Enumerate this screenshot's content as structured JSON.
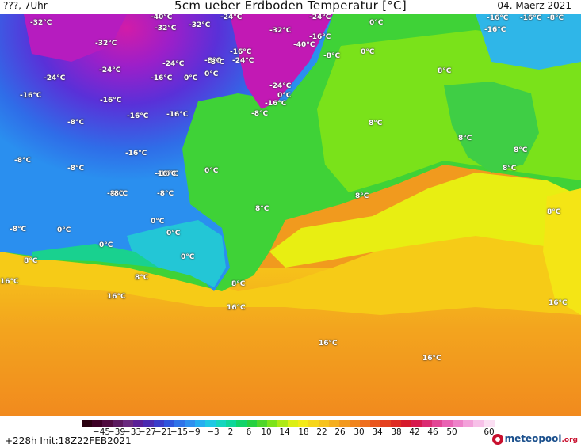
{
  "header": {
    "left": "???, 7Uhr",
    "title": "5cm ueber Erdboden Temperatur [°C]",
    "date": "04. Maerz 2021"
  },
  "map_labels": [
    {
      "text": "-32°C"
    },
    {
      "text": "-40°C"
    },
    {
      "text": "-24°C"
    },
    {
      "text": "-32°C"
    },
    {
      "text": "-32°C"
    },
    {
      "text": "-24°C"
    },
    {
      "text": "-32°C"
    },
    {
      "text": "-24°C"
    },
    {
      "text": "-16°C"
    },
    {
      "text": "0°C"
    },
    {
      "text": "-16°C"
    },
    {
      "text": "-8°C"
    },
    {
      "text": "-32°C"
    },
    {
      "text": "-16°C"
    },
    {
      "text": "-40°C"
    },
    {
      "text": "-8°C"
    },
    {
      "text": "0°C"
    },
    {
      "text": "0°C"
    },
    {
      "text": "-24°C"
    },
    {
      "text": "-24°C"
    },
    {
      "text": "-8°C"
    },
    {
      "text": "-16°C"
    },
    {
      "text": "-24°C"
    },
    {
      "text": "0°C"
    },
    {
      "text": "-24°C"
    },
    {
      "text": "-16°C"
    },
    {
      "text": "-16°C"
    },
    {
      "text": "-16°C"
    },
    {
      "text": "-16°C"
    },
    {
      "text": "0°C"
    },
    {
      "text": "-8°C"
    },
    {
      "text": "-16°C"
    },
    {
      "text": "-16°C"
    },
    {
      "text": "-8°C"
    },
    {
      "text": "8°C"
    },
    {
      "text": "8°C"
    },
    {
      "text": "-16°C"
    },
    {
      "text": "-16°C"
    },
    {
      "text": "8°C"
    },
    {
      "text": "-8°C"
    },
    {
      "text": "-8°C"
    },
    {
      "text": "0°C"
    },
    {
      "text": "8°C"
    },
    {
      "text": "8°C"
    },
    {
      "text": "-8°C"
    },
    {
      "text": "-16°C"
    },
    {
      "text": "-8°C"
    },
    {
      "text": "-8°C"
    },
    {
      "text": "0°C"
    },
    {
      "text": "-8°C"
    },
    {
      "text": "0°C"
    },
    {
      "text": "0°C"
    },
    {
      "text": "0°C"
    },
    {
      "text": "8°C"
    },
    {
      "text": "8°C"
    },
    {
      "text": "0°C"
    },
    {
      "text": "8°C"
    },
    {
      "text": "8°C"
    },
    {
      "text": "16°C"
    },
    {
      "text": "8°C"
    },
    {
      "text": "8°C"
    },
    {
      "text": "16°C"
    },
    {
      "text": "16°C"
    },
    {
      "text": "16°C"
    },
    {
      "text": "16°C"
    },
    {
      "text": "16°C"
    },
    {
      "text": "-16°C"
    },
    {
      "text": "-8°C"
    }
  ],
  "legend": {
    "colors": [
      "#2a0010",
      "#3d0025",
      "#4f0a3e",
      "#5c1a5f",
      "#6a2a7f",
      "#5a1f96",
      "#4b2ab0",
      "#3a3cc9",
      "#2f55dc",
      "#2f73e8",
      "#2e90ef",
      "#25aef0",
      "#1ec8e3",
      "#14d6bf",
      "#0ed79a",
      "#11d46a",
      "#26d040",
      "#4fd62a",
      "#7de31a",
      "#aeea14",
      "#dcef14",
      "#f4ea16",
      "#f7d619",
      "#f6c21c",
      "#f5ae1e",
      "#f39a1e",
      "#f1851d",
      "#ee6f1d",
      "#ea571e",
      "#e5411f",
      "#de2b22",
      "#d61a2c",
      "#d6194d",
      "#db2b72",
      "#e24595",
      "#e962b3",
      "#ee82c9",
      "#f3a1da",
      "#f7c0e8",
      "#fbdff3"
    ],
    "ticks": [
      "−45",
      "−39",
      "−33",
      "−27",
      "−21",
      "−15",
      "−9",
      "−3",
      "2",
      "6",
      "10",
      "14",
      "18",
      "22",
      "26",
      "30",
      "34",
      "38",
      "42",
      "46",
      "50",
      "60"
    ]
  },
  "footer": {
    "init": "+228h  Init:18Z22FEB2021",
    "brand": "meteopool",
    "brand_suffix": ".org"
  }
}
